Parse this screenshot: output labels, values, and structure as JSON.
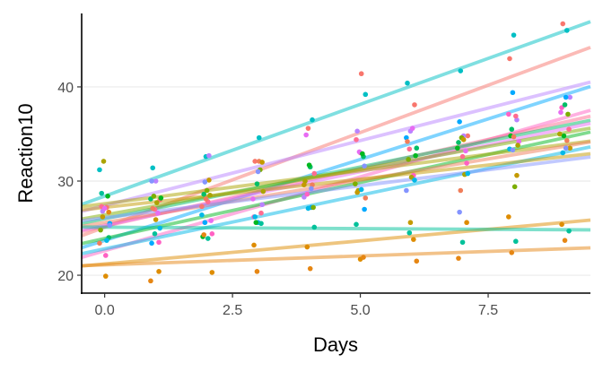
{
  "chart_data": {
    "type": "scatter",
    "xlabel": "Days",
    "ylabel": "Reaction10",
    "xlim": [
      -0.45,
      9.5
    ],
    "ylim": [
      18.1,
      47.8
    ],
    "x_ticks": [
      0,
      2.5,
      5,
      7.5
    ],
    "x_tick_labels": [
      "0.0",
      "2.5",
      "5.0",
      "7.5"
    ],
    "y_ticks": [
      20,
      30,
      40
    ],
    "y_tick_labels": [
      "20",
      "30",
      "40"
    ],
    "grid": "horizontal major",
    "legend": "none",
    "x": [
      0,
      1,
      2,
      3,
      4,
      5,
      6,
      7,
      8,
      9
    ],
    "series": [
      {
        "color": "#00BFC4",
        "intercept": 28.4,
        "slope": 1.95,
        "y": [
          31.2,
          31.4,
          32.6,
          34.6,
          36.5,
          39.2,
          40.4,
          41.7,
          45.5,
          46.0
        ]
      },
      {
        "color": "#F8766D",
        "intercept": 25.1,
        "slope": 2.01,
        "y": [
          27.2,
          28.0,
          27.3,
          32.1,
          35.6,
          41.4,
          38.1,
          34.8,
          43.0,
          46.7
        ]
      },
      {
        "color": "#B983FF",
        "intercept": 27.4,
        "slope": 1.38,
        "y": [
          26.8,
          30.0,
          32.7,
          27.5,
          28.3,
          35.3,
          35.3,
          34.8,
          36.5,
          38.9
        ]
      },
      {
        "color": "#00A9FF",
        "intercept": 23.7,
        "slope": 1.72,
        "y": [
          25.5,
          23.4,
          25.6,
          25.6,
          27.2,
          27.0,
          34.6,
          36.3,
          39.4,
          38.9
        ]
      },
      {
        "color": "#FF61C3",
        "intercept": 22.6,
        "slope": 1.57,
        "y": [
          22.1,
          23.5,
          24.4,
          26.2,
          28.6,
          33.0,
          30.6,
          31.9,
          37.1,
          37.8
        ]
      },
      {
        "color": "#FF6C91",
        "intercept": 25.2,
        "slope": 1.23,
        "y": [
          27.3,
          27.0,
          27.8,
          26.6,
          30.8,
          34.4,
          33.4,
          32.6,
          36.9,
          35.5
        ]
      },
      {
        "color": "#00BE67",
        "intercept": 26.0,
        "slope": 1.1,
        "y": [
          24.0,
          28.1,
          28.6,
          29.7,
          31.5,
          32.6,
          33.5,
          34.1,
          35.5,
          38.1
        ]
      },
      {
        "color": "#E76BF3",
        "intercept": 25.3,
        "slope": 1.14,
        "y": [
          27.1,
          26.6,
          25.8,
          28.1,
          34.9,
          33.1,
          35.6,
          33.2,
          34.2,
          37.3
        ]
      },
      {
        "color": "#7CAE00",
        "intercept": 26.4,
        "slope": 0.97,
        "y": [
          24.8,
          28.4,
          29.0,
          31.2,
          27.2,
          29.7,
          32.3,
          34.6,
          29.4,
          37.1
        ]
      },
      {
        "color": "#00B81F",
        "intercept": 23.9,
        "slope": 1.19,
        "y": [
          28.4,
          28.2,
          24.1,
          25.6,
          31.7,
          32.9,
          32.7,
          33.5,
          34.8,
          34.8
        ]
      },
      {
        "color": "#ABA300",
        "intercept": 27.6,
        "slope": 0.7,
        "y": [
          32.1,
          27.7,
          28.5,
          28.9,
          30.0,
          29.0,
          30.4,
          30.7,
          33.8,
          35.0
        ]
      },
      {
        "color": "#F07E5A",
        "intercept": 25.6,
        "slope": 0.9,
        "y": [
          23.4,
          27.1,
          28.1,
          32.1,
          29.6,
          28.2,
          34.2,
          29.0,
          34.7,
          34.3
        ]
      },
      {
        "color": "#00B8E7",
        "intercept": 22.8,
        "slope": 1.14,
        "y": [
          23.7,
          25.0,
          26.4,
          26.2,
          27.1,
          29.1,
          30.1,
          30.8,
          33.4,
          33.0
        ]
      },
      {
        "color": "#C49A00",
        "intercept": 27.2,
        "slope": 0.6,
        "y": [
          26.2,
          25.9,
          30.1,
          32.0,
          29.6,
          28.8,
          25.6,
          34.4,
          30.6,
          33.5
        ]
      },
      {
        "color": "#8494FF",
        "intercept": 26.1,
        "slope": 0.68,
        "y": [
          25.3,
          30.0,
          29.9,
          31.0,
          29.2,
          31.6,
          29.0,
          26.7,
          33.3,
          33.5
        ]
      },
      {
        "color": "#DE8C00",
        "intercept": 21.2,
        "slope": 0.49,
        "y": [
          19.9,
          20.4,
          20.3,
          23.2,
          23.0,
          21.7,
          23.8,
          25.6,
          26.2,
          25.4
        ]
      },
      {
        "color": "#00C19A",
        "intercept": 25.1,
        "slope": -0.03,
        "y": [
          28.7,
          24.4,
          23.9,
          25.5,
          25.1,
          25.4,
          24.5,
          23.5,
          23.6,
          24.7
        ]
      },
      {
        "color": "#E68613",
        "intercept": 21.1,
        "slope": 0.19,
        "y": [
          26.7,
          19.4,
          24.3,
          20.4,
          20.7,
          21.9,
          21.5,
          21.8,
          22.4,
          23.7
        ]
      }
    ]
  }
}
